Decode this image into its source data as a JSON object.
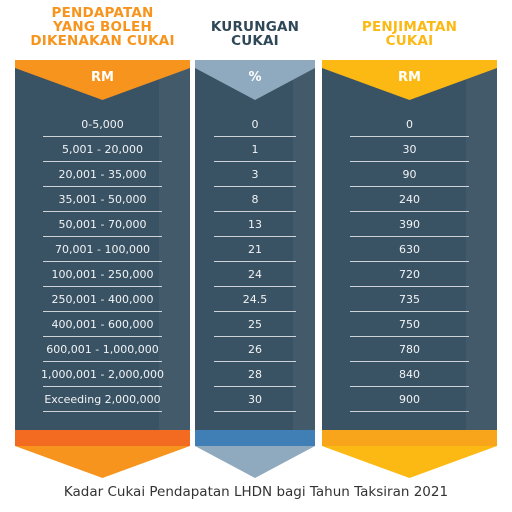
{
  "colors": {
    "income_accent": "#f7941d",
    "rate_accent": "#8fa9bf",
    "tax_accent": "#fdb913",
    "income_heading": "#f7941d",
    "rate_heading": "#2f4858",
    "tax_heading": "#fdb913",
    "panel": "#395264"
  },
  "columns": [
    {
      "heading_lines": [
        "PENDAPATAN",
        "YANG BOLEH",
        "DIKENAKAN CUKAI"
      ],
      "unit": "RM",
      "rows": [
        "0-5,000",
        "5,001 - 20,000",
        "20,001 - 35,000",
        "35,001 - 50,000",
        "50,001 - 70,000",
        "70,001 - 100,000",
        "100,001 - 250,000",
        "250,001 - 400,000",
        "400,001 - 600,000",
        "600,001 - 1,000,000",
        "1,000,001 - 2,000,000",
        "Exceeding 2,000,000"
      ]
    },
    {
      "heading_lines": [
        "KURUNGAN",
        "CUKAI"
      ],
      "unit": "%",
      "rows": [
        "0",
        "1",
        "3",
        "8",
        "13",
        "21",
        "24",
        "24.5",
        "25",
        "26",
        "28",
        "30"
      ]
    },
    {
      "heading_lines": [
        "PENJIMATAN",
        "CUKAI"
      ],
      "unit": "RM",
      "rows": [
        "0",
        "30",
        "90",
        "240",
        "390",
        "630",
        "720",
        "735",
        "750",
        "780",
        "840",
        "900"
      ]
    }
  ],
  "caption": "Kadar Cukai Pendapatan LHDN bagi Tahun Taksiran 2021"
}
